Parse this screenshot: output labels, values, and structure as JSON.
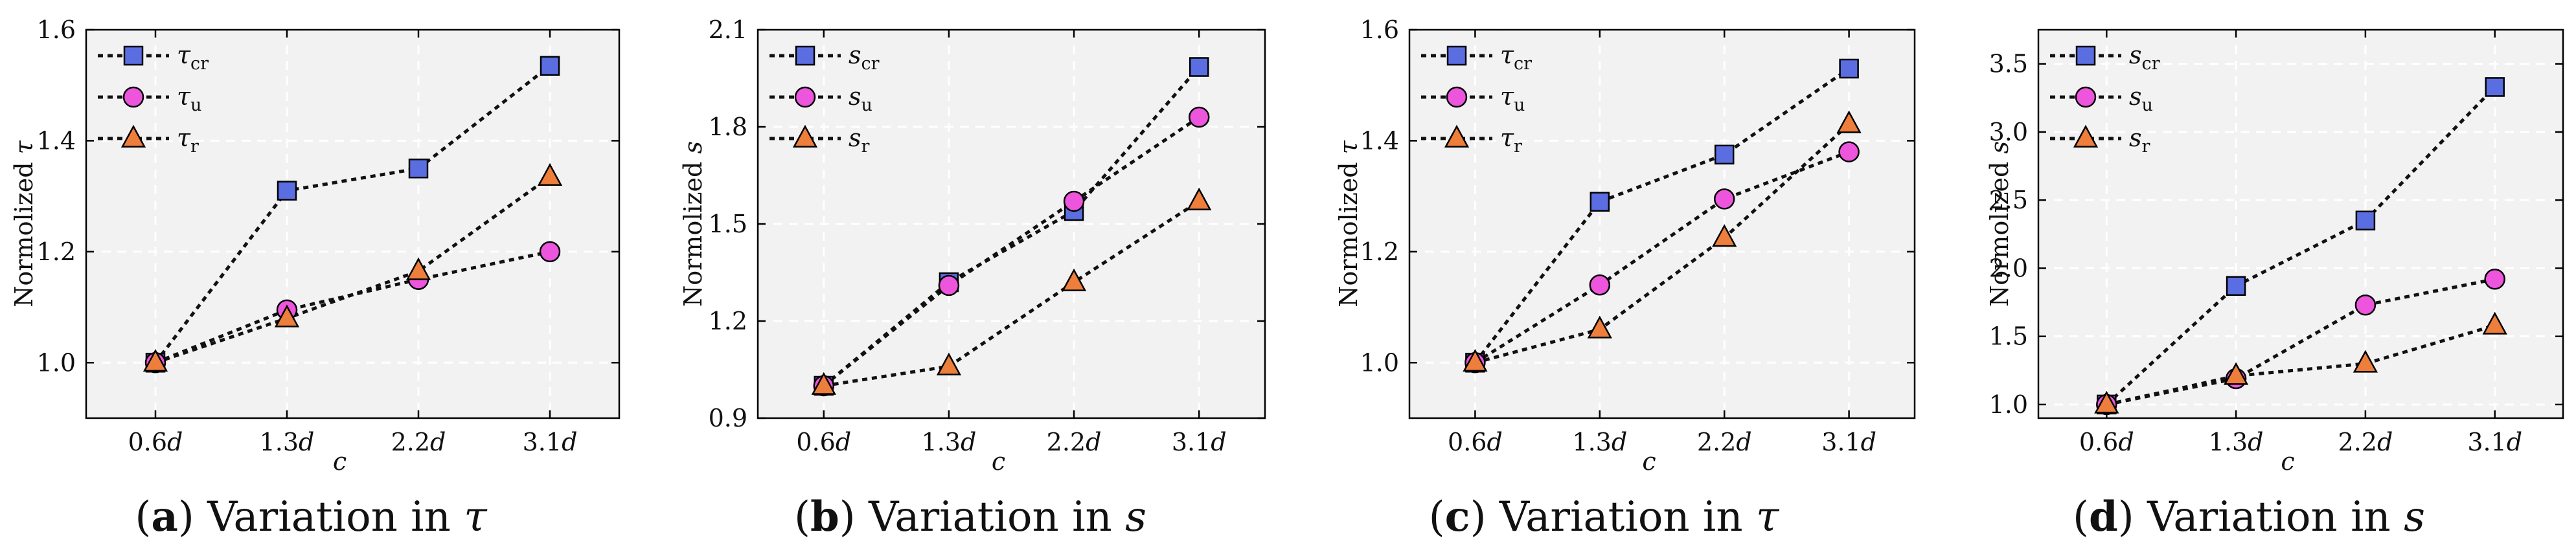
{
  "chart_data": [
    {
      "type": "line",
      "panel_letter": "a",
      "caption_text": "Variation in",
      "caption_symbol": "τ",
      "title": "(a) Variation in τ",
      "xlabel": "c",
      "ylabel": "Normolized τ",
      "ylabel_symbol": "τ",
      "ylim": [
        0.9,
        1.6
      ],
      "yticks": [
        1.0,
        1.2,
        1.4,
        1.6
      ],
      "ytick_labels": [
        "1.0",
        "1.2",
        "1.4",
        "1.6"
      ],
      "categories": [
        "0.6d",
        "1.3d",
        "2.2d",
        "3.1d"
      ],
      "grid": true,
      "legend_position": "top-left",
      "series": [
        {
          "name": "τcr",
          "symbol": "τ",
          "sub": "cr",
          "marker": "square",
          "color": "#5b6ee1",
          "values": [
            1.0,
            1.31,
            1.35,
            1.535
          ]
        },
        {
          "name": "τu",
          "symbol": "τ",
          "sub": "u",
          "marker": "circle",
          "color": "#ee55dd",
          "values": [
            1.0,
            1.095,
            1.15,
            1.2
          ]
        },
        {
          "name": "τr",
          "symbol": "τ",
          "sub": "r",
          "marker": "triangle",
          "color": "#ee7e3b",
          "values": [
            1.0,
            1.08,
            1.165,
            1.335
          ]
        }
      ]
    },
    {
      "type": "line",
      "panel_letter": "b",
      "caption_text": "Variation in",
      "caption_symbol": "s",
      "title": "(b) Variation in s",
      "xlabel": "c",
      "ylabel": "Normolized s",
      "ylabel_symbol": "s",
      "ylim": [
        0.9,
        2.1
      ],
      "yticks": [
        0.9,
        1.2,
        1.5,
        1.8,
        2.1
      ],
      "ytick_labels": [
        "0.9",
        "1.2",
        "1.5",
        "1.8",
        "2.1"
      ],
      "categories": [
        "0.6d",
        "1.3d",
        "2.2d",
        "3.1d"
      ],
      "grid": true,
      "legend_position": "top-left",
      "series": [
        {
          "name": "scr",
          "symbol": "s",
          "sub": "cr",
          "marker": "square",
          "color": "#5b6ee1",
          "values": [
            1.0,
            1.32,
            1.54,
            1.985
          ]
        },
        {
          "name": "su",
          "symbol": "s",
          "sub": "u",
          "marker": "circle",
          "color": "#ee55dd",
          "values": [
            1.0,
            1.31,
            1.57,
            1.83
          ]
        },
        {
          "name": "sr",
          "symbol": "s",
          "sub": "r",
          "marker": "triangle",
          "color": "#ee7e3b",
          "values": [
            1.0,
            1.06,
            1.32,
            1.57
          ]
        }
      ]
    },
    {
      "type": "line",
      "panel_letter": "c",
      "caption_text": "Variation in",
      "caption_symbol": "τ",
      "title": "(c) Variation in τ",
      "xlabel": "c",
      "ylabel": "Normolized τ",
      "ylabel_symbol": "τ",
      "ylim": [
        0.9,
        1.6
      ],
      "yticks": [
        1.0,
        1.2,
        1.4,
        1.6
      ],
      "ytick_labels": [
        "1.0",
        "1.2",
        "1.4",
        "1.6"
      ],
      "categories": [
        "0.6d",
        "1.3d",
        "2.2d",
        "3.1d"
      ],
      "grid": true,
      "legend_position": "top-left",
      "series": [
        {
          "name": "τcr",
          "symbol": "τ",
          "sub": "cr",
          "marker": "square",
          "color": "#5b6ee1",
          "values": [
            1.0,
            1.29,
            1.375,
            1.53
          ]
        },
        {
          "name": "τu",
          "symbol": "τ",
          "sub": "u",
          "marker": "circle",
          "color": "#ee55dd",
          "values": [
            1.0,
            1.14,
            1.295,
            1.38
          ]
        },
        {
          "name": "τr",
          "symbol": "τ",
          "sub": "r",
          "marker": "triangle",
          "color": "#ee7e3b",
          "values": [
            1.0,
            1.06,
            1.225,
            1.43
          ]
        }
      ]
    },
    {
      "type": "line",
      "panel_letter": "d",
      "caption_text": "Variation in",
      "caption_symbol": "s",
      "title": "(d) Variation in s",
      "xlabel": "c",
      "ylabel": "Normolized s",
      "ylabel_symbol": "s",
      "ylim": [
        0.9,
        3.75
      ],
      "yticks": [
        1.0,
        1.5,
        2.0,
        2.5,
        3.0,
        3.5
      ],
      "ytick_labels": [
        "1.0",
        "1.5",
        "2.0",
        "2.5",
        "3.0",
        "3.5"
      ],
      "categories": [
        "0.6d",
        "1.3d",
        "2.2d",
        "3.1d"
      ],
      "grid": true,
      "legend_position": "top-left",
      "series": [
        {
          "name": "scr",
          "symbol": "s",
          "sub": "cr",
          "marker": "square",
          "color": "#5b6ee1",
          "values": [
            1.0,
            1.87,
            2.35,
            3.33
          ]
        },
        {
          "name": "su",
          "symbol": "s",
          "sub": "u",
          "marker": "circle",
          "color": "#ee55dd",
          "values": [
            1.0,
            1.19,
            1.73,
            1.92
          ]
        },
        {
          "name": "sr",
          "symbol": "s",
          "sub": "r",
          "marker": "triangle",
          "color": "#ee7e3b",
          "values": [
            1.0,
            1.21,
            1.3,
            1.58
          ]
        }
      ]
    }
  ]
}
